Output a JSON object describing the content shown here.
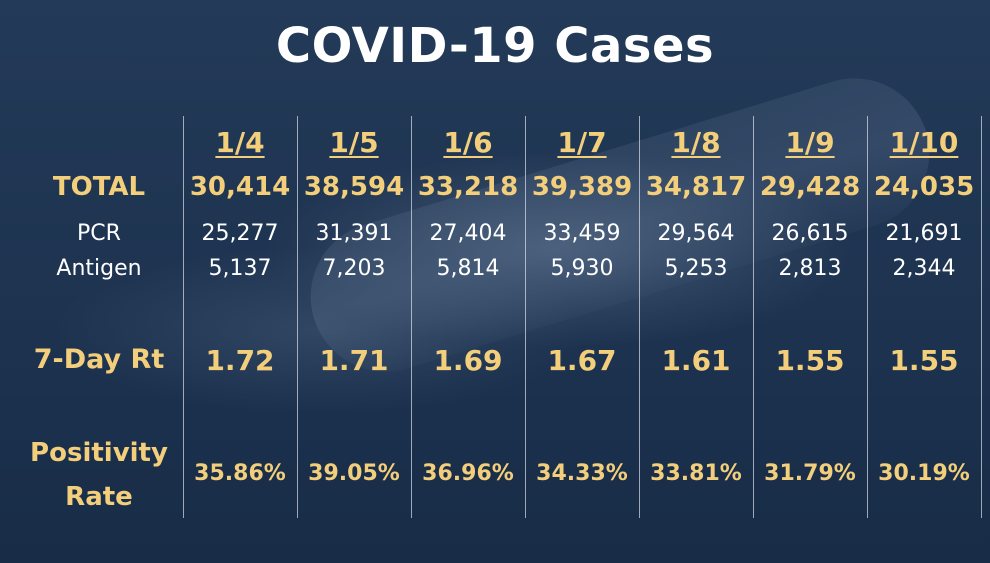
{
  "title": "COVID-19 Cases",
  "row_labels": {
    "total": "TOTAL",
    "pcr": "PCR",
    "antigen": "Antigen",
    "rt": "7-Day Rt",
    "positivity_line1": "Positivity",
    "positivity_line2": "Rate"
  },
  "columns": [
    {
      "date": "1/4",
      "total": "30,414",
      "pcr": "25,277",
      "antigen": "5,137",
      "rt": "1.72",
      "positivity": "35.86%"
    },
    {
      "date": "1/5",
      "total": "38,594",
      "pcr": "31,391",
      "antigen": "7,203",
      "rt": "1.71",
      "positivity": "39.05%"
    },
    {
      "date": "1/6",
      "total": "33,218",
      "pcr": "27,404",
      "antigen": "5,814",
      "rt": "1.69",
      "positivity": "36.96%"
    },
    {
      "date": "1/7",
      "total": "39,389",
      "pcr": "33,459",
      "antigen": "5,930",
      "rt": "1.67",
      "positivity": "34.33%"
    },
    {
      "date": "1/8",
      "total": "34,817",
      "pcr": "29,564",
      "antigen": "5,253",
      "rt": "1.61",
      "positivity": "33.81%"
    },
    {
      "date": "1/9",
      "total": "29,428",
      "pcr": "26,615",
      "antigen": "2,813",
      "rt": "1.55",
      "positivity": "31.79%"
    },
    {
      "date": "1/10",
      "total": "24,035",
      "pcr": "21,691",
      "antigen": "2,344",
      "rt": "1.55",
      "positivity": "30.19%"
    }
  ],
  "colors": {
    "accent_gold": "#f3cf7c",
    "background_navy": "#1f3552",
    "text_white": "#ffffff"
  }
}
